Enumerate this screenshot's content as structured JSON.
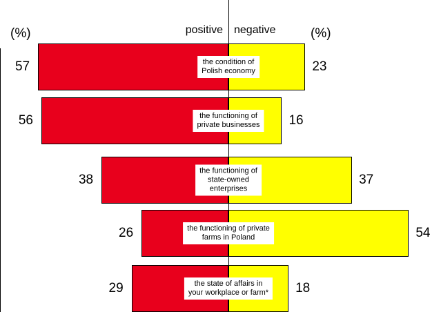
{
  "chart_data": {
    "type": "diverging_bar",
    "unit_label": "(%)",
    "categories": [
      "the condition of\nPolish economy",
      "the functioning of\nprivate businesses",
      "the functioning of\nstate-owned\nenterprises",
      "the functioning of private\nfarms in Poland",
      "the state of affairs in\nyour workplace or farm*"
    ],
    "series": [
      {
        "name": "positive",
        "color": "#e8001c",
        "values": [
          57,
          56,
          38,
          26,
          29
        ]
      },
      {
        "name": "negative",
        "color": "#ffff00",
        "values": [
          23,
          16,
          37,
          54,
          18
        ]
      }
    ]
  }
}
